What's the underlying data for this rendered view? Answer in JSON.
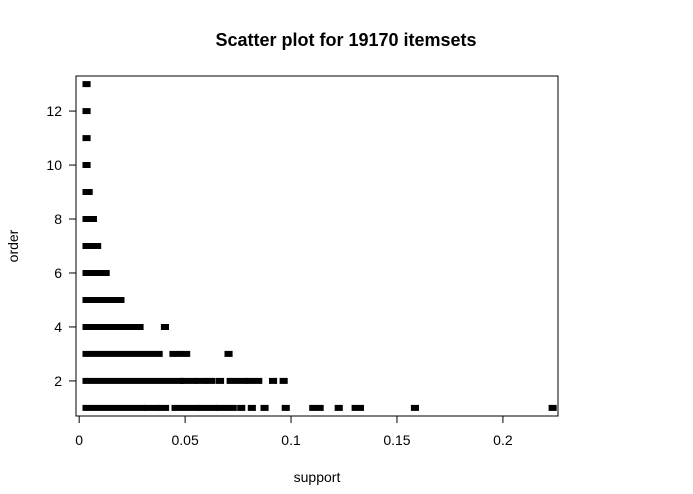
{
  "chart_data": {
    "type": "scatter",
    "title": "Scatter plot for 19170 itemsets",
    "xlabel": "support",
    "ylabel": "order",
    "xlim": [
      -0.0015,
      0.226
    ],
    "ylim": [
      0.7,
      13.3
    ],
    "x_ticks": [
      0,
      0.05,
      0.1,
      0.15,
      0.2
    ],
    "x_tick_labels": [
      "0",
      "0.05",
      "0.1",
      "0.15",
      "0.2"
    ],
    "y_ticks": [
      2,
      4,
      6,
      8,
      10,
      12
    ],
    "y_tick_labels": [
      "2",
      "4",
      "6",
      "8",
      "10",
      "12"
    ],
    "grid": false,
    "marker": "square",
    "color": "#000000",
    "bands": [
      {
        "order": 1,
        "segments": [
          [
            0.003,
            0.03
          ],
          [
            0.032,
            0.036
          ],
          [
            0.038,
            0.041
          ],
          [
            0.045,
            0.055
          ],
          [
            0.057,
            0.064
          ],
          [
            0.066,
            0.073
          ],
          [
            0.076,
            0.077
          ],
          [
            0.081,
            0.082
          ],
          [
            0.087,
            0.088
          ],
          [
            0.097,
            0.098
          ],
          [
            0.11,
            0.114
          ],
          [
            0.122,
            0.123
          ],
          [
            0.13,
            0.133
          ],
          [
            0.158,
            0.159
          ],
          [
            0.223,
            0.224
          ]
        ]
      },
      {
        "order": 2,
        "segments": [
          [
            0.003,
            0.048
          ],
          [
            0.049,
            0.054
          ],
          [
            0.056,
            0.059
          ],
          [
            0.061,
            0.063
          ],
          [
            0.066,
            0.067
          ],
          [
            0.071,
            0.078
          ],
          [
            0.08,
            0.085
          ],
          [
            0.091,
            0.092
          ],
          [
            0.096,
            0.097
          ]
        ]
      },
      {
        "order": 3,
        "segments": [
          [
            0.003,
            0.038
          ],
          [
            0.044,
            0.051
          ],
          [
            0.07,
            0.071
          ]
        ]
      },
      {
        "order": 4,
        "segments": [
          [
            0.003,
            0.029
          ],
          [
            0.04,
            0.041
          ]
        ]
      },
      {
        "order": 5,
        "segments": [
          [
            0.003,
            0.02
          ]
        ]
      },
      {
        "order": 6,
        "segments": [
          [
            0.003,
            0.013
          ]
        ]
      },
      {
        "order": 7,
        "segments": [
          [
            0.003,
            0.009
          ]
        ]
      },
      {
        "order": 8,
        "segments": [
          [
            0.003,
            0.007
          ]
        ]
      },
      {
        "order": 9,
        "segments": [
          [
            0.003,
            0.005
          ]
        ]
      },
      {
        "order": 10,
        "segments": [
          [
            0.003,
            0.004
          ]
        ]
      },
      {
        "order": 11,
        "segments": [
          [
            0.003,
            0.004
          ]
        ]
      },
      {
        "order": 12,
        "segments": [
          [
            0.003,
            0.004
          ]
        ]
      },
      {
        "order": 13,
        "segments": [
          [
            0.003,
            0.004
          ]
        ]
      }
    ]
  }
}
